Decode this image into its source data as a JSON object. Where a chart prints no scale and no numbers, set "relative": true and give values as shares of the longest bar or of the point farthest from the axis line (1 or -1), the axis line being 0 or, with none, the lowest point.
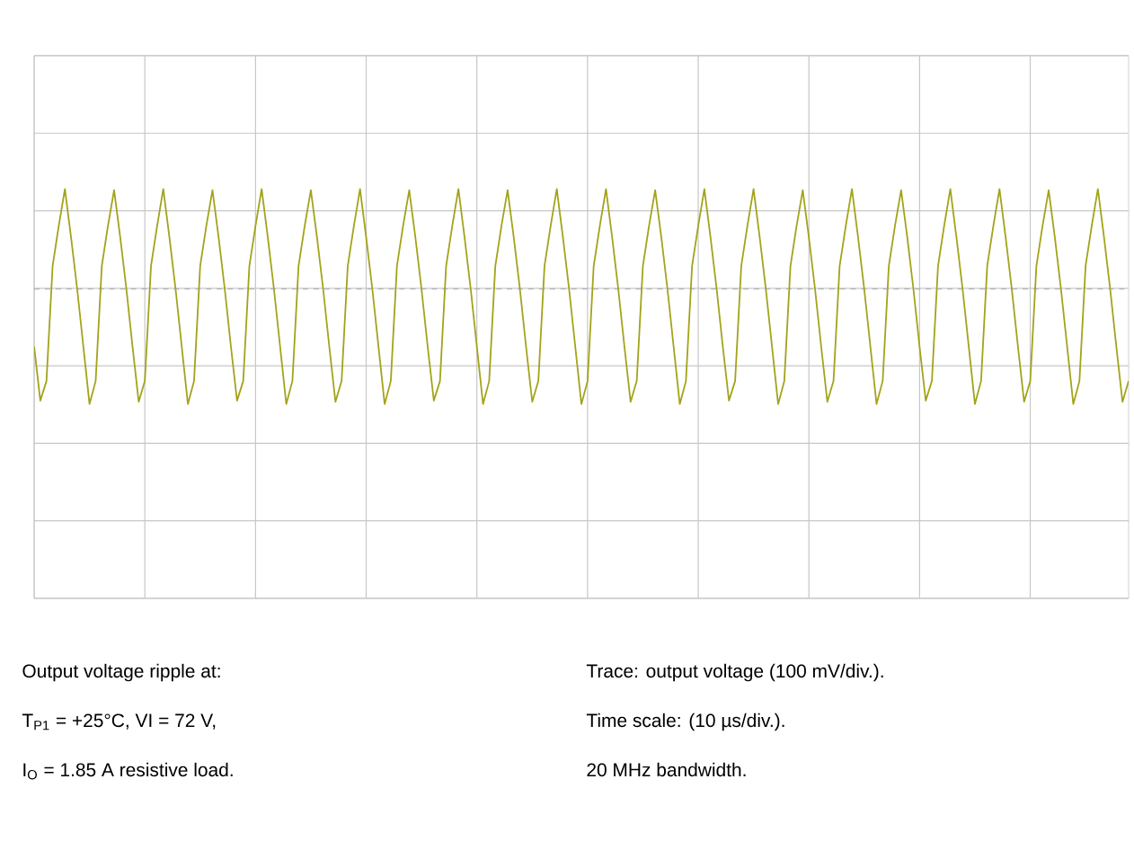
{
  "chart_data": {
    "type": "line",
    "relative": true,
    "color": "#a3a31a",
    "grid": true,
    "ref_lines": [
      {
        "axis": "y",
        "value": 0,
        "color": "#999999",
        "line_style": "dashed"
      }
    ],
    "marker": "none",
    "line_style": "solid",
    "categories": [
      null,
      null,
      null,
      null,
      null,
      null,
      null,
      null,
      null,
      null,
      null,
      null,
      null,
      null,
      null,
      null,
      null,
      null,
      null,
      null,
      null,
      null,
      null,
      null,
      null,
      null,
      null,
      null,
      null,
      null,
      null,
      null,
      null,
      null,
      null,
      null,
      null,
      null,
      null,
      null,
      null,
      null,
      null,
      null,
      null,
      null,
      null,
      null,
      null,
      null,
      null,
      null,
      null,
      null,
      null,
      null,
      null,
      null,
      null,
      null,
      null,
      null,
      null,
      null,
      null,
      null,
      null,
      null,
      null,
      null,
      null,
      null,
      null,
      null,
      null,
      null,
      null,
      null,
      null,
      null,
      null,
      null,
      null,
      null,
      null,
      null,
      null,
      null,
      null,
      null,
      null,
      null,
      null,
      null,
      null,
      null,
      null,
      null,
      null,
      null,
      null,
      null,
      null,
      null,
      null,
      null,
      null,
      null,
      null,
      null,
      null,
      null,
      null,
      null,
      null,
      null,
      null,
      null,
      null,
      null,
      null,
      null,
      null,
      null,
      null,
      null,
      null,
      null,
      null,
      null,
      null,
      null,
      null,
      null,
      null,
      null,
      null,
      null,
      null,
      null,
      null,
      null,
      null,
      null,
      null,
      null,
      null,
      null,
      null,
      null,
      null,
      null,
      null,
      null,
      null,
      null,
      null,
      null,
      null,
      null,
      null,
      null,
      null,
      null,
      null,
      null,
      null,
      null,
      null,
      null,
      null,
      null,
      null,
      null,
      null,
      null,
      null,
      null,
      null
    ],
    "values": [
      -0.5,
      -0.97,
      -0.8,
      0.2,
      0.55,
      0.87,
      0.45,
      0.0,
      -0.5,
      -1.0,
      -0.8,
      0.2,
      0.55,
      0.86,
      0.45,
      0.0,
      -0.5,
      -0.98,
      -0.8,
      0.2,
      0.55,
      0.87,
      0.45,
      0.0,
      -0.5,
      -1.0,
      -0.8,
      0.2,
      0.55,
      0.86,
      0.45,
      0.0,
      -0.5,
      -0.97,
      -0.8,
      0.2,
      0.55,
      0.87,
      0.45,
      0.0,
      -0.5,
      -1.0,
      -0.8,
      0.2,
      0.55,
      0.86,
      0.45,
      0.0,
      -0.5,
      -0.98,
      -0.8,
      0.2,
      0.55,
      0.87,
      0.45,
      0.0,
      -0.5,
      -1.0,
      -0.8,
      0.2,
      0.55,
      0.86,
      0.45,
      0.0,
      -0.5,
      -0.97,
      -0.8,
      0.2,
      0.55,
      0.87,
      0.45,
      0.0,
      -0.5,
      -1.0,
      -0.8,
      0.2,
      0.55,
      0.86,
      0.45,
      0.0,
      -0.5,
      -0.98,
      -0.8,
      0.2,
      0.55,
      0.87,
      0.45,
      0.0,
      -0.5,
      -1.0,
      -0.8,
      0.2,
      0.55,
      0.87,
      0.45,
      0.0,
      -0.5,
      -0.98,
      -0.8,
      0.2,
      0.55,
      0.86,
      0.45,
      0.0,
      -0.5,
      -1.0,
      -0.8,
      0.2,
      0.55,
      0.87,
      0.45,
      0.0,
      -0.5,
      -0.97,
      -0.8,
      0.2,
      0.55,
      0.87,
      0.45,
      0.0,
      -0.5,
      -1.0,
      -0.8,
      0.2,
      0.55,
      0.86,
      0.45,
      0.0,
      -0.5,
      -0.98,
      -0.8,
      0.2,
      0.55,
      0.87,
      0.45,
      0.0,
      -0.5,
      -1.0,
      -0.8,
      0.2,
      0.55,
      0.86,
      0.45,
      0.0,
      -0.5,
      -0.97,
      -0.8,
      0.2,
      0.55,
      0.87,
      0.45,
      0.0,
      -0.5,
      -1.0,
      -0.8,
      0.2,
      0.55,
      0.87,
      0.45,
      0.0,
      -0.5,
      -0.98,
      -0.8,
      0.2,
      0.55,
      0.86,
      0.45,
      0.0,
      -0.5,
      -1.0,
      -0.8,
      0.2,
      0.55,
      0.87,
      0.45,
      0.0,
      -0.5,
      -0.98,
      -0.8
    ],
    "annotations": [
      "Output voltage ripple at:",
      "T$_{P1}$ = +25°C, VI = 72 V,",
      "I$_{O}$ = 1.85 A resistive load.",
      "Trace: output voltage (100 mV/div.).",
      "Time scale: (10 µs/div.).",
      "20 MHz bandwidth."
    ]
  }
}
